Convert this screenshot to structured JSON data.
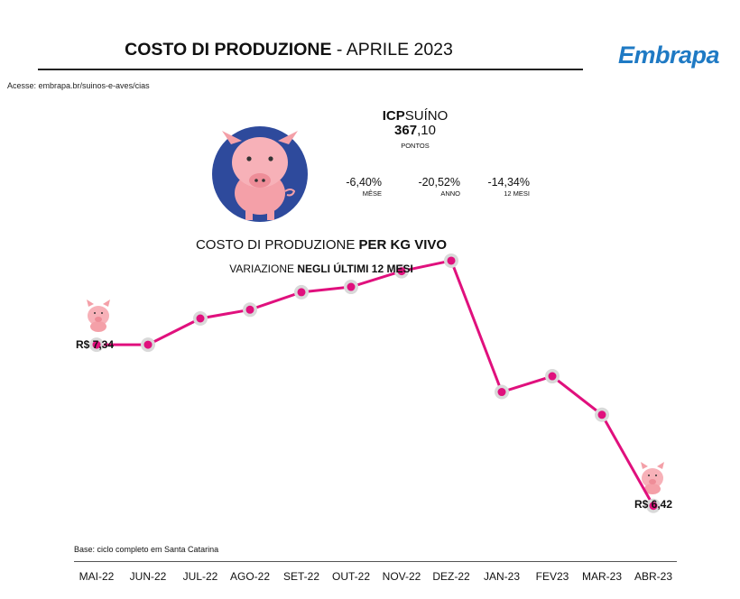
{
  "header": {
    "title_bold": "COSTO DI PRODUZIONE",
    "title_rest": " - APRILE 2023",
    "logo_text": "Embrapa",
    "access_note": "Acesse: embrapa.br/suinos-e-aves/cias"
  },
  "icp": {
    "name_bold": "ICP",
    "name_rest": "SUÍNO",
    "value_int": "367",
    "value_dec": ",10",
    "unit": "PONTOS",
    "variations": [
      {
        "value": "-6,40%",
        "label": "MÊSE"
      },
      {
        "value": "-20,52%",
        "label": "ANNO"
      },
      {
        "value": "-14,34%",
        "label": "12 MESI"
      }
    ]
  },
  "subtitle": {
    "line1_rest": "COSTO DI PRODUZIONE ",
    "line1_bold": "PER KG VIVO",
    "line2_rest": "VARIAZIONE ",
    "line2_bold": "NEGLI ÚLTIMI 12 MESI"
  },
  "base_note": "Base: ciclo completo em Santa Catarina",
  "colors": {
    "line": "#e0107d",
    "marker_ring": "#d9d9d9",
    "pig_badge": "#2e4a9c",
    "pig": "#f4a0a8"
  },
  "chart_data": {
    "type": "line",
    "x": [
      "MAI-22",
      "JUN-22",
      "JUL-22",
      "AGO-22",
      "SET-22",
      "OUT-22",
      "NOV-22",
      "DEZ-22",
      "JAN-23",
      "FEV23",
      "MAR-23",
      "ABR-23"
    ],
    "series": [
      {
        "values": [
          7.34,
          7.34,
          7.49,
          7.54,
          7.64,
          7.67,
          7.76,
          7.82,
          7.07,
          7.16,
          6.94,
          6.42
        ]
      }
    ],
    "labels": {
      "first": "R$ 7,34",
      "last": "R$ 6,42"
    },
    "ylim": [
      6.3,
      8.0
    ],
    "grid": false,
    "legend": "none",
    "y_axis_visible": false
  }
}
